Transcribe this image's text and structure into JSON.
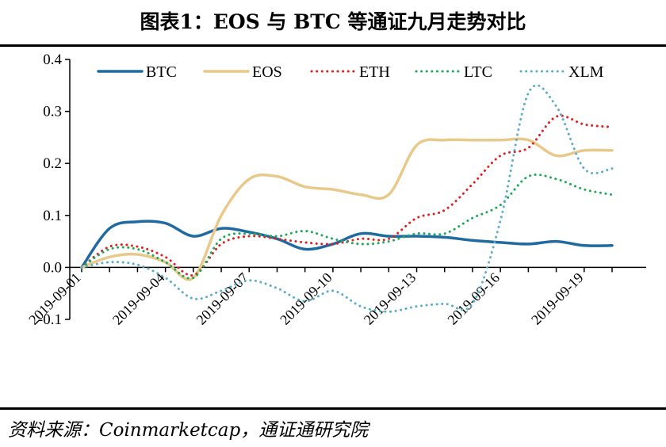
{
  "header": {
    "title": "图表1：EOS 与 BTC 等通证九月走势对比"
  },
  "footer": {
    "source": "资料来源：Coinmarketcap，通证通研究院"
  },
  "chart_data": {
    "type": "line",
    "ylim": [
      -0.1,
      0.4
    ],
    "yticks": [
      -0.1,
      0.0,
      0.1,
      0.2,
      0.3,
      0.4
    ],
    "ytick_labels": [
      "-0.1",
      "0.0",
      "0.1",
      "0.2",
      "0.3",
      "0.4"
    ],
    "x": [
      "2019-09-01",
      "2019-09-02",
      "2019-09-03",
      "2019-09-04",
      "2019-09-05",
      "2019-09-06",
      "2019-09-07",
      "2019-09-08",
      "2019-09-09",
      "2019-09-10",
      "2019-09-11",
      "2019-09-12",
      "2019-09-13",
      "2019-09-14",
      "2019-09-15",
      "2019-09-16",
      "2019-09-17",
      "2019-09-18",
      "2019-09-19",
      "2019-09-20"
    ],
    "xtick_labels": [
      "2019-09-01",
      "2019-09-04",
      "2019-09-07",
      "2019-09-10",
      "2019-09-13",
      "2019-09-16",
      "2019-09-19"
    ],
    "xlabel": "",
    "ylabel": "",
    "legend_position": "top",
    "grid": false,
    "series": [
      {
        "name": "BTC",
        "color": "#1f6aa0",
        "style": "solid",
        "values": [
          0.0,
          0.075,
          0.088,
          0.085,
          0.06,
          0.075,
          0.068,
          0.055,
          0.035,
          0.045,
          0.065,
          0.06,
          0.06,
          0.058,
          0.052,
          0.048,
          0.045,
          0.05,
          0.042,
          0.042
        ]
      },
      {
        "name": "EOS",
        "color": "#e8c98a",
        "style": "solid",
        "values": [
          0.0,
          0.02,
          0.025,
          0.01,
          -0.02,
          0.1,
          0.17,
          0.175,
          0.155,
          0.15,
          0.14,
          0.14,
          0.235,
          0.245,
          0.245,
          0.245,
          0.245,
          0.215,
          0.225,
          0.225
        ]
      },
      {
        "name": "ETH",
        "color": "#e02020",
        "style": "dotted",
        "values": [
          0.0,
          0.04,
          0.04,
          0.02,
          -0.015,
          0.045,
          0.06,
          0.055,
          0.048,
          0.045,
          0.055,
          0.055,
          0.095,
          0.11,
          0.16,
          0.215,
          0.23,
          0.29,
          0.275,
          0.27
        ]
      },
      {
        "name": "LTC",
        "color": "#1fa85a",
        "style": "dotted",
        "values": [
          0.0,
          0.035,
          0.035,
          0.01,
          -0.02,
          0.055,
          0.065,
          0.06,
          0.07,
          0.055,
          0.045,
          0.05,
          0.065,
          0.065,
          0.095,
          0.12,
          0.175,
          0.17,
          0.15,
          0.14
        ]
      },
      {
        "name": "XLM",
        "color": "#5aaec8",
        "style": "dotted",
        "values": [
          0.0,
          0.01,
          0.005,
          -0.02,
          -0.06,
          -0.045,
          -0.025,
          -0.04,
          -0.065,
          -0.045,
          -0.075,
          -0.085,
          -0.075,
          -0.07,
          -0.07,
          0.09,
          0.335,
          0.31,
          0.19,
          0.19
        ]
      }
    ]
  }
}
